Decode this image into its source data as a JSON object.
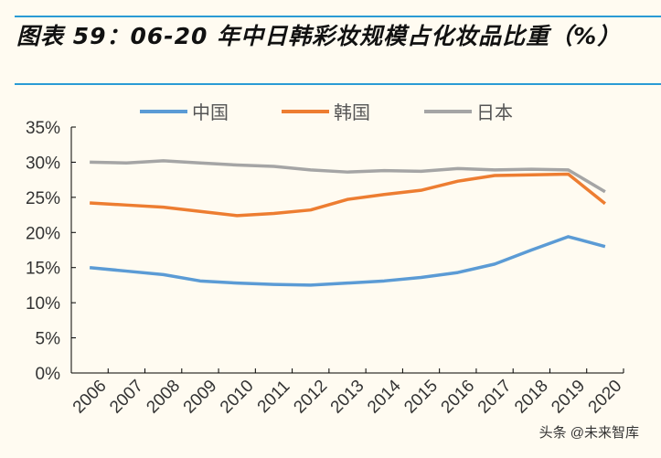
{
  "title": "图表 59：06-20 年中日韩彩妆规模占化妆品比重（%）",
  "watermark": "头条 @未来智库",
  "chart_data": {
    "type": "line",
    "title": "图表 59：06-20 年中日韩彩妆规模占化妆品比重（%）",
    "categories": [
      "2006",
      "2007",
      "2008",
      "2009",
      "2010",
      "2011",
      "2012",
      "2013",
      "2014",
      "2015",
      "2016",
      "2017",
      "2018",
      "2019",
      "2020"
    ],
    "ylim": [
      0,
      35
    ],
    "yticks": [
      "0%",
      "5%",
      "10%",
      "15%",
      "20%",
      "25%",
      "30%",
      "35%"
    ],
    "grid": false,
    "legend_position": "top",
    "series": [
      {
        "name": "中国",
        "color": "#5b9bd5",
        "values": [
          15.0,
          14.5,
          14.0,
          13.1,
          12.8,
          12.6,
          12.5,
          12.8,
          13.1,
          13.6,
          14.3,
          15.5,
          17.5,
          19.4,
          18.0
        ]
      },
      {
        "name": "韩国",
        "color": "#ed7d31",
        "values": [
          24.2,
          23.9,
          23.6,
          23.0,
          22.4,
          22.7,
          23.2,
          24.7,
          25.4,
          26.0,
          27.3,
          28.1,
          28.2,
          28.3,
          24.1
        ]
      },
      {
        "name": "日本",
        "color": "#a5a5a5",
        "values": [
          30.0,
          29.9,
          30.2,
          29.9,
          29.6,
          29.4,
          28.9,
          28.6,
          28.8,
          28.7,
          29.1,
          28.9,
          29.0,
          28.9,
          25.8
        ]
      }
    ]
  }
}
